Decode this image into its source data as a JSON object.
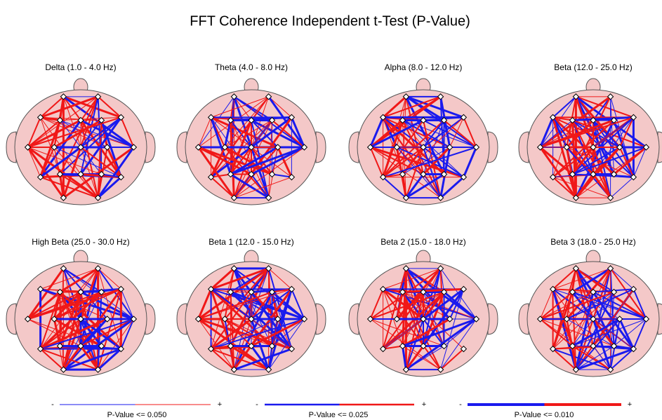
{
  "title": "FFT Coherence Independent t-Test  (P-Value)",
  "panels": [
    {
      "title": "Delta (1.0 - 4.0 Hz)"
    },
    {
      "title": "Theta (4.0 - 8.0 Hz)"
    },
    {
      "title": "Alpha (8.0 - 12.0 Hz)"
    },
    {
      "title": "Beta (12.0 - 25.0 Hz)"
    },
    {
      "title": "High Beta (25.0 - 30.0 Hz)"
    },
    {
      "title": "Beta 1 (12.0 - 15.0 Hz)"
    },
    {
      "title": "Beta 2 (15.0 - 18.0 Hz)"
    },
    {
      "title": "Beta 3 (18.0 - 25.0 Hz)"
    }
  ],
  "legend": [
    {
      "minus": "-",
      "plus": "+",
      "label": "P-Value <= 0.050"
    },
    {
      "minus": "-",
      "plus": "+",
      "label": "P-Value <= 0.025"
    },
    {
      "minus": "-",
      "plus": "+",
      "label": "P-Value <= 0.010"
    }
  ]
}
